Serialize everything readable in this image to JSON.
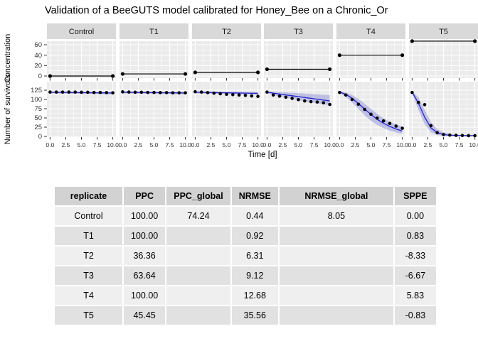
{
  "title": "Validation of a BeeGUTS model calibrated for Honey_Bee on a  Chronic_Or",
  "figure": {
    "x_axis_label": "Time [d]",
    "y_axis_label_top": "Concentration",
    "y_axis_label_bottom": "Number of survivors",
    "x_tick_labels": [
      "0.0",
      "2.5",
      "5.0",
      "7.5",
      "10.0"
    ],
    "top_y_tick_labels": [
      "0",
      "20",
      "40",
      "60"
    ],
    "bottom_y_tick_labels": [
      "0",
      "25",
      "50",
      "75",
      "100",
      "125"
    ]
  },
  "chart_data": {
    "type": "line",
    "title": "Validation of a BeeGUTS model calibrated for Honey_Bee on a  Chronic_Or",
    "xlabel": "Time [d]",
    "xlim": [
      0,
      10
    ],
    "xticks": [
      0,
      2.5,
      5,
      7.5,
      10
    ],
    "facets": [
      "Control",
      "T1",
      "T2",
      "T3",
      "T4",
      "T5"
    ],
    "time_days": [
      0,
      1,
      2,
      3,
      4,
      5,
      6,
      7,
      8,
      9,
      10
    ],
    "concentration_row": {
      "ylabel": "Concentration",
      "ylim": [
        0,
        68
      ],
      "yticks": [
        0,
        20,
        40,
        60
      ],
      "values": {
        "Control": 0,
        "T1": 4,
        "T2": 7,
        "T3": 13,
        "T4": 40,
        "T5": 67
      }
    },
    "survivors_row": {
      "ylabel": "Number of survivors",
      "ylim": [
        0,
        125
      ],
      "yticks": [
        0,
        25,
        50,
        75,
        100,
        125
      ],
      "series": [
        {
          "facet": "Control",
          "observed": [
            120,
            120,
            120,
            120,
            120,
            119.5,
            119.5,
            119,
            119,
            118.5,
            118
          ],
          "predicted": [
            119.5,
            119.3,
            119.1,
            118.9,
            118.7,
            118.5,
            118.3,
            118.1,
            117.9,
            117.7,
            117.5
          ],
          "ribbon_lower": [
            116.5,
            116.2,
            115.9,
            115.6,
            115.3,
            115,
            114.7,
            114.4,
            114.1,
            113.8,
            113.5
          ],
          "ribbon_upper": [
            122,
            121.8,
            121.6,
            121.4,
            121.2,
            121,
            120.8,
            120.6,
            120.4,
            120.2,
            120
          ]
        },
        {
          "facet": "T1",
          "observed": [
            120.5,
            120,
            119.5,
            119.5,
            119,
            119,
            118.5,
            118.5,
            118,
            118,
            118
          ],
          "predicted": [
            119.5,
            119.3,
            119.1,
            118.9,
            118.7,
            118.5,
            118.3,
            118.1,
            117.9,
            117.7,
            117.5
          ],
          "ribbon_lower": [
            116.5,
            116.2,
            115.9,
            115.6,
            115.3,
            115,
            114.7,
            114.4,
            114.1,
            113.8,
            113.5
          ],
          "ribbon_upper": [
            122,
            121.8,
            121.6,
            121.4,
            121.2,
            121,
            120.8,
            120.6,
            120.4,
            120.2,
            120
          ]
        },
        {
          "facet": "T2",
          "observed": [
            121,
            120,
            118.5,
            117,
            115.5,
            114,
            113,
            112,
            111,
            109.5,
            108.5
          ],
          "predicted": [
            119.5,
            119.2,
            118.9,
            118.6,
            118.3,
            118,
            117.7,
            117.4,
            117.1,
            116.8,
            116.5
          ],
          "ribbon_lower": [
            116.5,
            116.1,
            115.7,
            115.3,
            114.9,
            114.5,
            114.1,
            113.7,
            113.3,
            112.9,
            112.5
          ],
          "ribbon_upper": [
            122,
            121.8,
            121.6,
            121.4,
            121.2,
            121,
            120.8,
            120.6,
            120.4,
            120.2,
            120
          ]
        },
        {
          "facet": "T3",
          "observed": [
            120,
            112,
            109,
            106,
            103,
            99.5,
            96,
            94,
            93,
            91,
            86.5
          ],
          "predicted": [
            120,
            117,
            114.7,
            112.3,
            110,
            107.7,
            105.3,
            103,
            100.7,
            98.3,
            96
          ],
          "ribbon_lower": [
            116,
            112,
            108.5,
            105,
            101.5,
            98,
            95,
            92,
            89.5,
            87,
            84.5
          ],
          "ribbon_upper": [
            122,
            121,
            120,
            119,
            118,
            117,
            116,
            115,
            114,
            113,
            112
          ]
        },
        {
          "facet": "T4",
          "observed": [
            119,
            112,
            100,
            87,
            73,
            60,
            49.5,
            42,
            35,
            28,
            22
          ],
          "predicted": [
            120,
            114,
            103,
            89,
            74,
            59.5,
            46,
            35.5,
            27,
            20,
            14.5
          ],
          "ribbon_lower": [
            117,
            107,
            92,
            74,
            57,
            42,
            31,
            22.5,
            15.5,
            10.5,
            7
          ],
          "ribbon_upper": [
            122,
            119,
            112,
            101.5,
            88.5,
            74.5,
            61,
            49,
            40,
            32.5,
            26
          ]
        },
        {
          "facet": "T5",
          "observed": [
            119,
            92,
            86,
            29,
            10,
            5,
            3.5,
            3,
            2.5,
            2,
            2
          ],
          "predicted": [
            120,
            90,
            52,
            23,
            10,
            5,
            3,
            2.5,
            2,
            2,
            2
          ],
          "ribbon_lower": [
            116,
            72,
            33,
            11,
            4,
            1.5,
            1,
            1,
            1,
            1,
            1
          ],
          "ribbon_upper": [
            122,
            106,
            72,
            38,
            19.5,
            11,
            7,
            5,
            4,
            3.5,
            3.5
          ]
        }
      ]
    }
  },
  "table": {
    "columns": [
      "replicate",
      "PPC",
      "PPC_global",
      "NRMSE",
      "NRMSE_global",
      "SPPE"
    ],
    "rows": [
      [
        "Control",
        "100.00",
        "74.24",
        "0.44",
        "8.05",
        "0.00"
      ],
      [
        "T1",
        "100.00",
        "",
        "0.92",
        "",
        "0.83"
      ],
      [
        "T2",
        "36.36",
        "",
        "6.31",
        "",
        "-8.33"
      ],
      [
        "T3",
        "63.64",
        "",
        "9.12",
        "",
        "-6.67"
      ],
      [
        "T4",
        "100.00",
        "",
        "12.68",
        "",
        "5.83"
      ],
      [
        "T5",
        "45.45",
        "",
        "35.56",
        "",
        "-0.83"
      ]
    ]
  },
  "colors": {
    "panel_bg": "#EBEBEB",
    "strip_bg": "#D9D9D9",
    "grid": "#FFFFFF",
    "model_line": "#2222CC",
    "ribbon": "#9999DD",
    "observed_point": "#000000",
    "tick_text": "#333333",
    "header_bg": "#D2D2D2",
    "row_light": "#EFEFEF",
    "row_dark": "#E1E1E1"
  }
}
